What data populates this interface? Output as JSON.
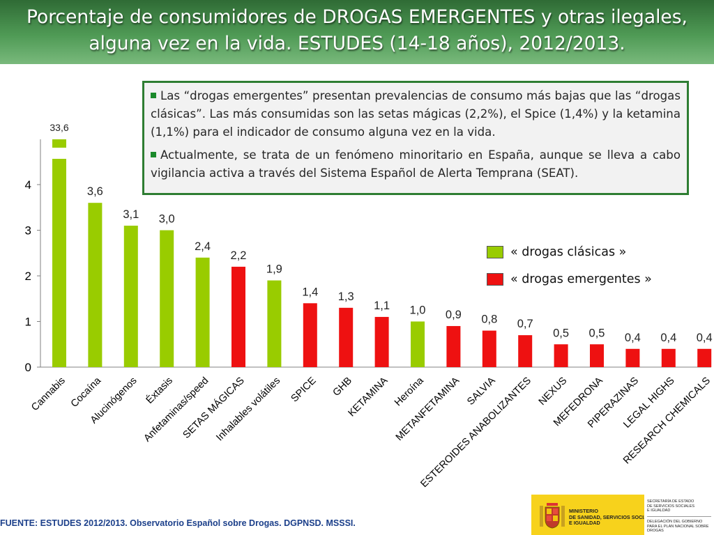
{
  "header": {
    "title_line1": "Porcentaje de consumidores de DROGAS EMERGENTES y otras ilegales,",
    "title_line2": "alguna vez en la vida. ESTUDES (14-18 años), 2012/2013."
  },
  "note": {
    "bullet1": "Las “drogas emergentes” presentan prevalencias de consumo más bajas que las “drogas clásicas”. Las más consumidas son las setas mágicas (2,2%), el Spice (1,4%) y la ketamina (1,1%) para el indicador de consumo alguna vez en la vida.",
    "bullet2": "Actualmente, se trata de un fenómeno minoritario en España, aunque se lleva a cabo vigilancia activa a través del Sistema Español de Alerta Temprana (SEAT)."
  },
  "legend": {
    "classic": "« drogas clásicas »",
    "emerging": "« drogas emergentes »"
  },
  "colors": {
    "classic": "#99cc00",
    "emerging": "#ee1111",
    "header": "#4a9150",
    "note_border": "#2e7d32"
  },
  "chart_data": {
    "type": "bar",
    "categories": [
      "Cannabis",
      "Cocaína",
      "Alucinógenos",
      "Éxtasis",
      "Anfetaminas/speed",
      "SETAS MÁGICAS",
      "Inhalables volátiles",
      "SPICE",
      "GHB",
      "KETAMINA",
      "Heroína",
      "METANFETAMINA",
      "SALVIA",
      "ESTEROIDES ANABOLIZANTES",
      "NEXUS",
      "MEFEDRONA",
      "PIPERAZINAS",
      "LEGAL HIGHS",
      "RESEARCH CHEMICALS"
    ],
    "values": [
      33.6,
      3.6,
      3.1,
      3.0,
      2.4,
      2.2,
      1.9,
      1.4,
      1.3,
      1.1,
      1.0,
      0.9,
      0.8,
      0.7,
      0.5,
      0.5,
      0.4,
      0.4,
      0.4
    ],
    "value_labels": [
      "33,6",
      "3,6",
      "3,1",
      "3,0",
      "2,4",
      "2,2",
      "1,9",
      "1,4",
      "1,3",
      "1,1",
      "1,0",
      "0,9",
      "0,8",
      "0,7",
      "0,5",
      "0,5",
      "0,4",
      "0,4",
      "0,4"
    ],
    "groups": [
      "classic",
      "classic",
      "classic",
      "classic",
      "classic",
      "emerging",
      "classic",
      "emerging",
      "emerging",
      "emerging",
      "classic",
      "emerging",
      "emerging",
      "emerging",
      "emerging",
      "emerging",
      "emerging",
      "emerging",
      "emerging"
    ],
    "yticks": [
      "0",
      "1",
      "2",
      "3",
      "4"
    ],
    "ylim": [
      0,
      5
    ],
    "axis_break": true,
    "title": "",
    "xlabel": "",
    "ylabel": ""
  },
  "footer": {
    "source": "FUENTE: ESTUDES 2012/2013. Observatorio Español sobre Drogas. DGPNSD. MSSSI.",
    "logo_ministry": "MINISTERIO\nDE SANIDAD, SERVICIOS SOCIALES\nE IGUALDAD",
    "logo_secretaria": "SECRETARÍA DE ESTADO\nDE SERVICIOS SOCIALES\nE IGUALDAD",
    "logo_delegacion": "DELEGACIÓN DEL GOBIERNO\nPARA EL PLAN NACIONAL SOBRE DROGAS"
  }
}
